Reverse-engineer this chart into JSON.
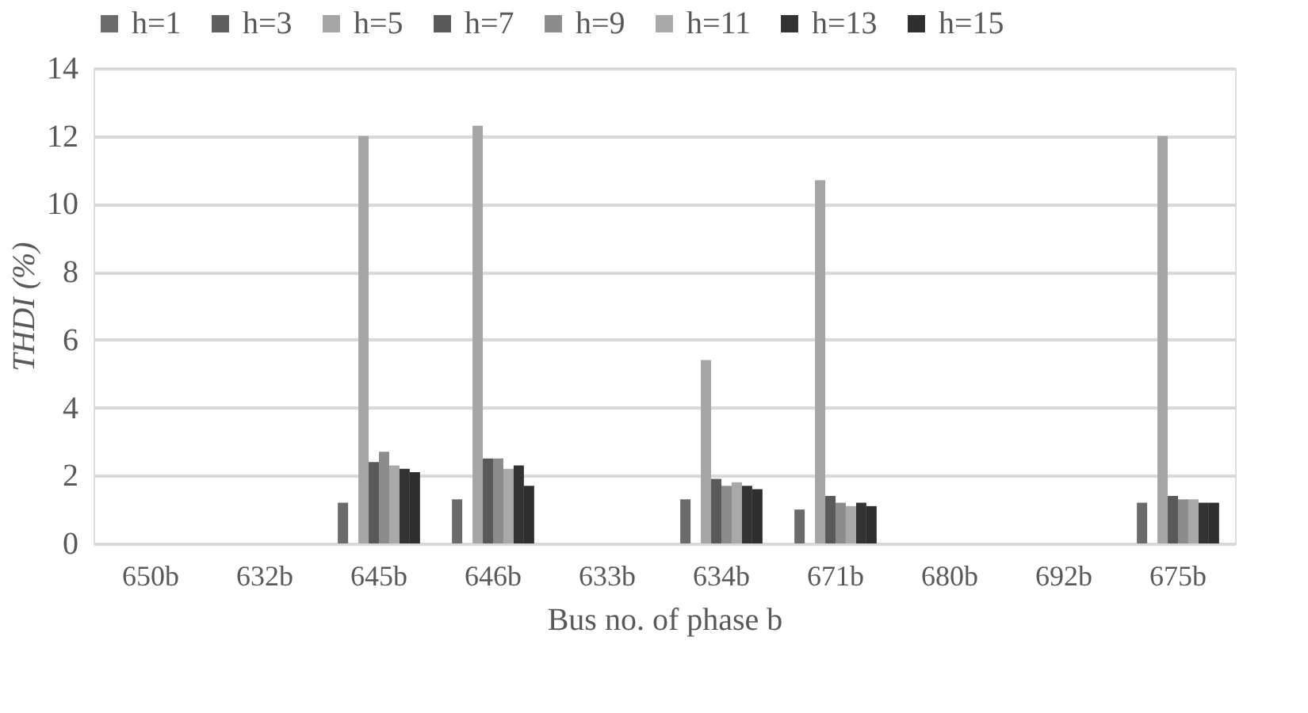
{
  "chart_data": {
    "type": "bar",
    "xlabel": "Bus no. of phase b",
    "ylabel": "THDI (%)",
    "categories": [
      "650b",
      "632b",
      "645b",
      "646b",
      "633b",
      "634b",
      "671b",
      "680b",
      "692b",
      "675b"
    ],
    "series": [
      {
        "name": "h=1",
        "color": "#6b6b6b",
        "values": [
          null,
          null,
          1.2,
          1.3,
          null,
          1.3,
          1.0,
          null,
          null,
          1.2
        ]
      },
      {
        "name": "h=3",
        "color": "#5e5e5e",
        "values": [
          null,
          null,
          null,
          null,
          null,
          null,
          null,
          null,
          null,
          null
        ]
      },
      {
        "name": "h=5",
        "color": "#a5a5a5",
        "values": [
          null,
          null,
          12.0,
          12.3,
          null,
          5.4,
          10.7,
          null,
          null,
          12.0
        ]
      },
      {
        "name": "h=7",
        "color": "#595959",
        "values": [
          null,
          null,
          2.4,
          2.5,
          null,
          1.9,
          1.4,
          null,
          null,
          1.4
        ]
      },
      {
        "name": "h=9",
        "color": "#8c8c8c",
        "values": [
          null,
          null,
          2.7,
          2.5,
          null,
          1.7,
          1.2,
          null,
          null,
          1.3
        ]
      },
      {
        "name": "h=11",
        "color": "#a9a9a9",
        "values": [
          null,
          null,
          2.3,
          2.2,
          null,
          1.8,
          1.1,
          null,
          null,
          1.3
        ]
      },
      {
        "name": "h=13",
        "color": "#333333",
        "values": [
          null,
          null,
          2.2,
          2.3,
          null,
          1.7,
          1.2,
          null,
          null,
          1.2
        ]
      },
      {
        "name": "h=15",
        "color": "#2e2e2e",
        "values": [
          null,
          null,
          2.1,
          1.7,
          null,
          1.6,
          1.1,
          null,
          null,
          1.2
        ]
      }
    ],
    "ylim": [
      0,
      14
    ],
    "yticks": [
      0,
      2,
      4,
      6,
      8,
      10,
      12,
      14
    ],
    "grid": "y",
    "legend": "top"
  }
}
